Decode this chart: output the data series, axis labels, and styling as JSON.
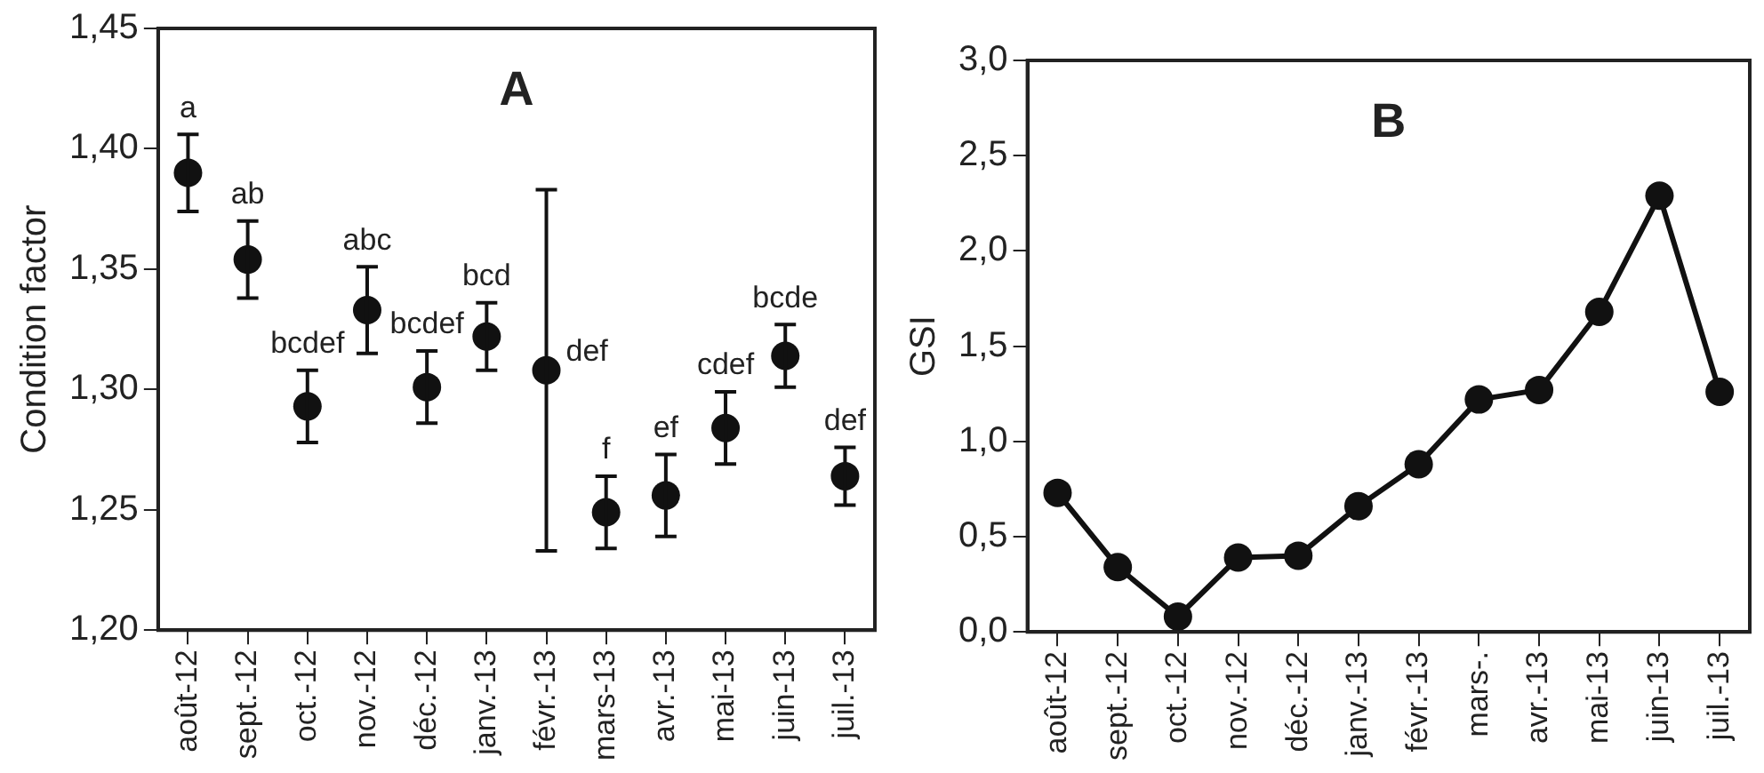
{
  "chart_data": [
    {
      "type": "scatter",
      "title": "A",
      "ylabel": "Condition factor",
      "categories": [
        "août-12",
        "sept.-12",
        "oct.-12",
        "nov.-12",
        "déc.-12",
        "janv.-13",
        "févr.-13",
        "mars-13",
        "avr.-13",
        "mai-13",
        "juin-13",
        "juil.-13"
      ],
      "values": [
        1.39,
        1.354,
        1.293,
        1.333,
        1.301,
        1.322,
        1.308,
        1.249,
        1.256,
        1.284,
        1.314,
        1.264
      ],
      "errors": [
        0.016,
        0.016,
        0.015,
        0.018,
        0.015,
        0.014,
        0.075,
        0.015,
        0.017,
        0.015,
        0.013,
        0.012
      ],
      "color": "#111111",
      "marker": "circle",
      "ylim": [
        1.2,
        1.45
      ],
      "yticks": [
        {
          "value": 1.2,
          "label": "1,20"
        },
        {
          "value": 1.25,
          "label": "1,25"
        },
        {
          "value": 1.3,
          "label": "1,30"
        },
        {
          "value": 1.35,
          "label": "1,35"
        },
        {
          "value": 1.4,
          "label": "1,40"
        },
        {
          "value": 1.45,
          "label": "1,45"
        }
      ],
      "value_labels": [
        "a",
        "ab",
        "bcdef",
        "abc",
        "bcdef",
        "bcd",
        "def",
        "f",
        "ef",
        "cdef",
        "bcde",
        "def"
      ],
      "grid": false,
      "legend": false
    },
    {
      "type": "line",
      "title": "B",
      "ylabel": "GSI",
      "categories": [
        "août-12",
        "sept.-12",
        "oct.-12",
        "nov.-12",
        "déc.-12",
        "janv.-13",
        "févr.-13",
        "mars-.",
        "avr.-13",
        "mai-13",
        "juin-13",
        "juil.-13"
      ],
      "values": [
        0.73,
        0.34,
        0.08,
        0.39,
        0.4,
        0.66,
        0.88,
        1.22,
        1.27,
        1.68,
        2.29,
        1.26
      ],
      "color": "#111111",
      "marker": "circle",
      "line_style": "solid",
      "ylim": [
        0,
        3
      ],
      "yticks": [
        {
          "value": 0,
          "label": "0,0"
        },
        {
          "value": 0.5,
          "label": "0,5"
        },
        {
          "value": 1,
          "label": "1,0"
        },
        {
          "value": 1.5,
          "label": "1,5"
        },
        {
          "value": 2,
          "label": "2,0"
        },
        {
          "value": 2.5,
          "label": "2,5"
        },
        {
          "value": 3,
          "label": "3,0"
        }
      ],
      "grid": false,
      "legend": false
    }
  ]
}
